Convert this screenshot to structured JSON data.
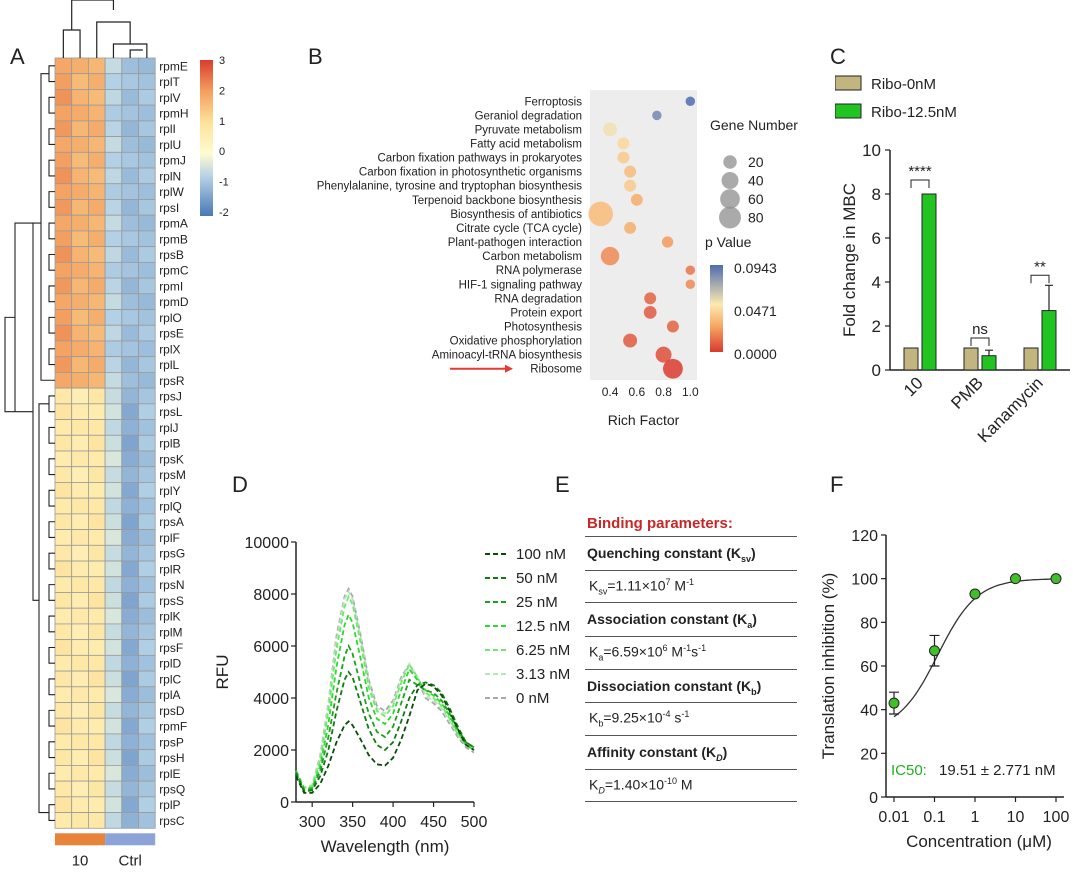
{
  "panels": {
    "a": "A",
    "b": "B",
    "c": "C",
    "d": "D",
    "e": "E",
    "f": "F"
  },
  "chart_data": [
    {
      "type": "heatmap",
      "panel": "A",
      "rows": [
        "rpmE",
        "rplT",
        "rplV",
        "rpmH",
        "rplI",
        "rplU",
        "rpmJ",
        "rplN",
        "rplW",
        "rpsI",
        "rpmA",
        "rpmB",
        "rpsB",
        "rpmC",
        "rpmI",
        "rpmD",
        "rplO",
        "rpsE",
        "rplX",
        "rplL",
        "rpsR",
        "rpsJ",
        "rpsL",
        "rplJ",
        "rplB",
        "rpsK",
        "rpsM",
        "rplY",
        "rplQ",
        "rpsA",
        "rplF",
        "rpsG",
        "rplR",
        "rpsN",
        "rpsS",
        "rplK",
        "rplM",
        "rpsF",
        "rplD",
        "rplC",
        "rplA",
        "rpsD",
        "rpmF",
        "rpsP",
        "rpsH",
        "rplE",
        "rpsQ",
        "rplP",
        "rpsC"
      ],
      "group_labels": [
        "10",
        "Ctrl"
      ],
      "group_colors": [
        "#e8833a",
        "#8da3d8"
      ],
      "columns_per_group": 3,
      "colorbar_ticks": [
        "3",
        "2",
        "1",
        "0",
        "-1",
        "-2"
      ],
      "colorbar_range": [
        -2,
        3
      ]
    },
    {
      "type": "scatter",
      "panel": "B",
      "categories": [
        "Ferroptosis",
        "Geraniol degradation",
        "Pyruvate metabolism",
        "Fatty acid metabolism",
        "Carbon fixation pathways in prokaryotes",
        "Carbon fixation in photosynthetic organisms",
        "Phenylalanine, tyrosine and tryptophan biosynthesis",
        "Terpenoid backbone biosynthesis",
        "Biosynthesis of antibiotics",
        "Citrate cycle (TCA cycle)",
        "Plant-pathogen interaction",
        "Carbon metabolism",
        "RNA polymerase",
        "HIF-1 signaling pathway",
        "RNA degradation",
        "Protein export",
        "Photosynthesis",
        "Oxidative phosphorylation",
        "Aminoacyl-tRNA biosynthesis",
        "Ribosome"
      ],
      "rich_factor": [
        1.0,
        0.75,
        0.4,
        0.5,
        0.5,
        0.55,
        0.55,
        0.6,
        0.33,
        0.55,
        0.83,
        0.4,
        1.0,
        1.0,
        0.7,
        0.7,
        0.87,
        0.55,
        0.8,
        0.87
      ],
      "gene_number": [
        5,
        5,
        20,
        12,
        12,
        12,
        12,
        12,
        95,
        12,
        10,
        45,
        5,
        5,
        12,
        15,
        12,
        20,
        30,
        55
      ],
      "p_value": [
        0.0943,
        0.085,
        0.055,
        0.045,
        0.04,
        0.035,
        0.04,
        0.03,
        0.035,
        0.03,
        0.025,
        0.02,
        0.015,
        0.02,
        0.01,
        0.008,
        0.01,
        0.008,
        0.005,
        0.0001
      ],
      "xlabel": "Rich Factor",
      "xticks": [
        "0.4",
        "0.6",
        "0.8",
        "1.0"
      ],
      "xlim": [
        0.25,
        1.05
      ],
      "highlight": "Ribosome",
      "legend_size_title": "Gene Number",
      "legend_size_values": [
        "20",
        "40",
        "60",
        "80"
      ],
      "legend_color_title": "p  Value",
      "legend_color_ticks": [
        "0.0943",
        "0.0471",
        "0.0000"
      ]
    },
    {
      "type": "bar",
      "panel": "C",
      "categories": [
        "10",
        "PMB",
        "Kanamycin"
      ],
      "series": [
        {
          "name": "Ribo-0nM",
          "values": [
            1,
            1,
            1
          ],
          "color": "#c2b580"
        },
        {
          "name": "Ribo-12.5nM",
          "values": [
            8,
            0.65,
            2.7
          ],
          "color": "#22c422",
          "errors": [
            0,
            0.25,
            1.15
          ]
        }
      ],
      "ylabel": "Fold change in MBC",
      "ylim": [
        0,
        10
      ],
      "yticks": [
        "0",
        "2",
        "4",
        "6",
        "8",
        "10"
      ],
      "significance": [
        "****",
        "ns",
        "**"
      ]
    },
    {
      "type": "line",
      "panel": "D",
      "xlabel": "Wavelength (nm)",
      "ylabel": "RFU",
      "xlim": [
        280,
        500
      ],
      "ylim": [
        0,
        10000
      ],
      "xticks": [
        "300",
        "350",
        "400",
        "450",
        "500"
      ],
      "yticks": [
        "0",
        "2000",
        "4000",
        "6000",
        "8000",
        "10000"
      ],
      "series": [
        {
          "name": "100 nM",
          "color": "#0a4d0a",
          "points": [
            [
              280,
              1000
            ],
            [
              290,
              350
            ],
            [
              300,
              350
            ],
            [
              310,
              700
            ],
            [
              320,
              1400
            ],
            [
              330,
              2300
            ],
            [
              340,
              2950
            ],
            [
              345,
              3100
            ],
            [
              350,
              2950
            ],
            [
              360,
              2400
            ],
            [
              370,
              1800
            ],
            [
              380,
              1450
            ],
            [
              390,
              1400
            ],
            [
              400,
              1700
            ],
            [
              410,
              2400
            ],
            [
              420,
              3300
            ],
            [
              430,
              4300
            ],
            [
              440,
              4550
            ],
            [
              450,
              4450
            ],
            [
              460,
              4100
            ],
            [
              470,
              3500
            ],
            [
              480,
              2800
            ],
            [
              490,
              2200
            ],
            [
              500,
              2000
            ]
          ]
        },
        {
          "name": "50 nM",
          "color": "#127a12",
          "points": [
            [
              280,
              1100
            ],
            [
              290,
              400
            ],
            [
              300,
              450
            ],
            [
              310,
              1000
            ],
            [
              320,
              2000
            ],
            [
              330,
              3500
            ],
            [
              340,
              4700
            ],
            [
              345,
              5000
            ],
            [
              350,
              4800
            ],
            [
              360,
              3800
            ],
            [
              370,
              2800
            ],
            [
              380,
              2200
            ],
            [
              390,
              2000
            ],
            [
              400,
              2300
            ],
            [
              410,
              3100
            ],
            [
              420,
              4000
            ],
            [
              430,
              4500
            ],
            [
              440,
              4600
            ],
            [
              450,
              4500
            ],
            [
              460,
              4200
            ],
            [
              470,
              3600
            ],
            [
              480,
              2900
            ],
            [
              490,
              2300
            ],
            [
              500,
              2100
            ]
          ]
        },
        {
          "name": "25 nM",
          "color": "#1aa21a",
          "points": [
            [
              280,
              1150
            ],
            [
              290,
              450
            ],
            [
              300,
              500
            ],
            [
              310,
              1200
            ],
            [
              320,
              2500
            ],
            [
              330,
              4200
            ],
            [
              340,
              5600
            ],
            [
              345,
              6000
            ],
            [
              350,
              5700
            ],
            [
              360,
              4500
            ],
            [
              370,
              3400
            ],
            [
              380,
              2700
            ],
            [
              390,
              2500
            ],
            [
              400,
              2900
            ],
            [
              410,
              3800
            ],
            [
              420,
              4700
            ],
            [
              430,
              4500
            ],
            [
              440,
              4300
            ],
            [
              450,
              4200
            ],
            [
              460,
              3900
            ],
            [
              470,
              3400
            ],
            [
              480,
              2800
            ],
            [
              490,
              2300
            ],
            [
              500,
              2100
            ]
          ]
        },
        {
          "name": "12.5 nM",
          "color": "#2ed82e",
          "points": [
            [
              280,
              1200
            ],
            [
              290,
              500
            ],
            [
              300,
              550
            ],
            [
              310,
              1400
            ],
            [
              320,
              3000
            ],
            [
              330,
              5200
            ],
            [
              340,
              6800
            ],
            [
              345,
              7200
            ],
            [
              350,
              6900
            ],
            [
              360,
              5500
            ],
            [
              370,
              4000
            ],
            [
              380,
              3200
            ],
            [
              390,
              3000
            ],
            [
              400,
              3400
            ],
            [
              410,
              4300
            ],
            [
              420,
              5100
            ],
            [
              430,
              4700
            ],
            [
              440,
              4300
            ],
            [
              450,
              4100
            ],
            [
              460,
              3800
            ],
            [
              470,
              3300
            ],
            [
              480,
              2700
            ],
            [
              490,
              2200
            ],
            [
              500,
              2000
            ]
          ]
        },
        {
          "name": "6.25 nM",
          "color": "#6fe86f",
          "points": [
            [
              280,
              1200
            ],
            [
              290,
              550
            ],
            [
              300,
              600
            ],
            [
              310,
              1600
            ],
            [
              320,
              3500
            ],
            [
              330,
              5900
            ],
            [
              340,
              7500
            ],
            [
              345,
              7900
            ],
            [
              350,
              7600
            ],
            [
              360,
              6100
            ],
            [
              370,
              4400
            ],
            [
              380,
              3500
            ],
            [
              390,
              3300
            ],
            [
              400,
              3700
            ],
            [
              410,
              4600
            ],
            [
              420,
              5300
            ],
            [
              430,
              4800
            ],
            [
              440,
              4200
            ],
            [
              450,
              4000
            ],
            [
              460,
              3700
            ],
            [
              470,
              3200
            ],
            [
              480,
              2600
            ],
            [
              490,
              2200
            ],
            [
              500,
              2000
            ]
          ]
        },
        {
          "name": "3.13 nM",
          "color": "#b5e6b5",
          "points": [
            [
              280,
              1200
            ],
            [
              290,
              550
            ],
            [
              300,
              650
            ],
            [
              310,
              1700
            ],
            [
              320,
              3700
            ],
            [
              330,
              6200
            ],
            [
              340,
              7800
            ],
            [
              345,
              8100
            ],
            [
              350,
              7800
            ],
            [
              360,
              6300
            ],
            [
              370,
              4600
            ],
            [
              380,
              3600
            ],
            [
              390,
              3400
            ],
            [
              400,
              3800
            ],
            [
              410,
              4700
            ],
            [
              420,
              5300
            ],
            [
              430,
              4800
            ],
            [
              440,
              4100
            ],
            [
              450,
              3900
            ],
            [
              460,
              3600
            ],
            [
              470,
              3100
            ],
            [
              480,
              2600
            ],
            [
              490,
              2200
            ],
            [
              500,
              2000
            ]
          ]
        },
        {
          "name": "0 nM",
          "color": "#a8a8a8",
          "points": [
            [
              280,
              1200
            ],
            [
              290,
              550
            ],
            [
              300,
              650
            ],
            [
              310,
              1800
            ],
            [
              320,
              3800
            ],
            [
              330,
              6400
            ],
            [
              340,
              7900
            ],
            [
              345,
              8200
            ],
            [
              350,
              7900
            ],
            [
              360,
              6400
            ],
            [
              370,
              4700
            ],
            [
              380,
              3700
            ],
            [
              390,
              3500
            ],
            [
              400,
              3900
            ],
            [
              410,
              4800
            ],
            [
              420,
              5300
            ],
            [
              430,
              4700
            ],
            [
              440,
              4000
            ],
            [
              450,
              3800
            ],
            [
              460,
              3500
            ],
            [
              470,
              3000
            ],
            [
              480,
              2500
            ],
            [
              490,
              2100
            ],
            [
              500,
              1900
            ]
          ]
        }
      ]
    },
    {
      "type": "scatter",
      "panel": "F",
      "x": [
        0.01,
        0.1,
        1,
        10,
        100
      ],
      "y": [
        43,
        67,
        93,
        100,
        100
      ],
      "errors": [
        5,
        7,
        0,
        0,
        0
      ],
      "fit": "sigmoid",
      "xlabel": "Concentration (μM)",
      "ylabel": "Translation inhibition (%)",
      "xticks": [
        "0.01",
        "0.1",
        "1",
        "10",
        "100"
      ],
      "yticks": [
        "0",
        "20",
        "40",
        "60",
        "80",
        "100",
        "120"
      ],
      "ylim": [
        0,
        120
      ],
      "ic50_label": "IC50:",
      "ic50_value": "19.51 ± 2.771 nM"
    }
  ],
  "panelE": {
    "title": "Binding parameters:",
    "quench_head": "Quenching constant (K",
    "quench_head_sub": "sv",
    "quench_k": "K",
    "quench_k_sub": "sv",
    "quench_val": "=1.11×10",
    "quench_exp": "7",
    "quench_unit": " M",
    "quench_unit_exp": "-1",
    "assoc_head": "Association constant (K",
    "assoc_head_sub": "a",
    "assoc_k": "K",
    "assoc_k_sub": "a",
    "assoc_val": "=6.59×10",
    "assoc_exp": "6",
    "assoc_unit": " M",
    "assoc_unit_exp": "-1",
    "assoc_unit2": "s",
    "assoc_unit2_exp": "-1",
    "dissoc_head": "Dissociation constant (K",
    "dissoc_head_sub": "b",
    "dissoc_k": "K",
    "dissoc_k_sub": "b",
    "dissoc_val": "=9.25×10",
    "dissoc_exp": "-4",
    "dissoc_unit": " s",
    "dissoc_unit_exp": "-1",
    "aff_head": "Affinity constant (K",
    "aff_head_sub": "D",
    "aff_k": "K",
    "aff_k_sub": "D",
    "aff_val": "=1.40×10",
    "aff_exp": "-10",
    "aff_unit": " M",
    "close": ")"
  }
}
